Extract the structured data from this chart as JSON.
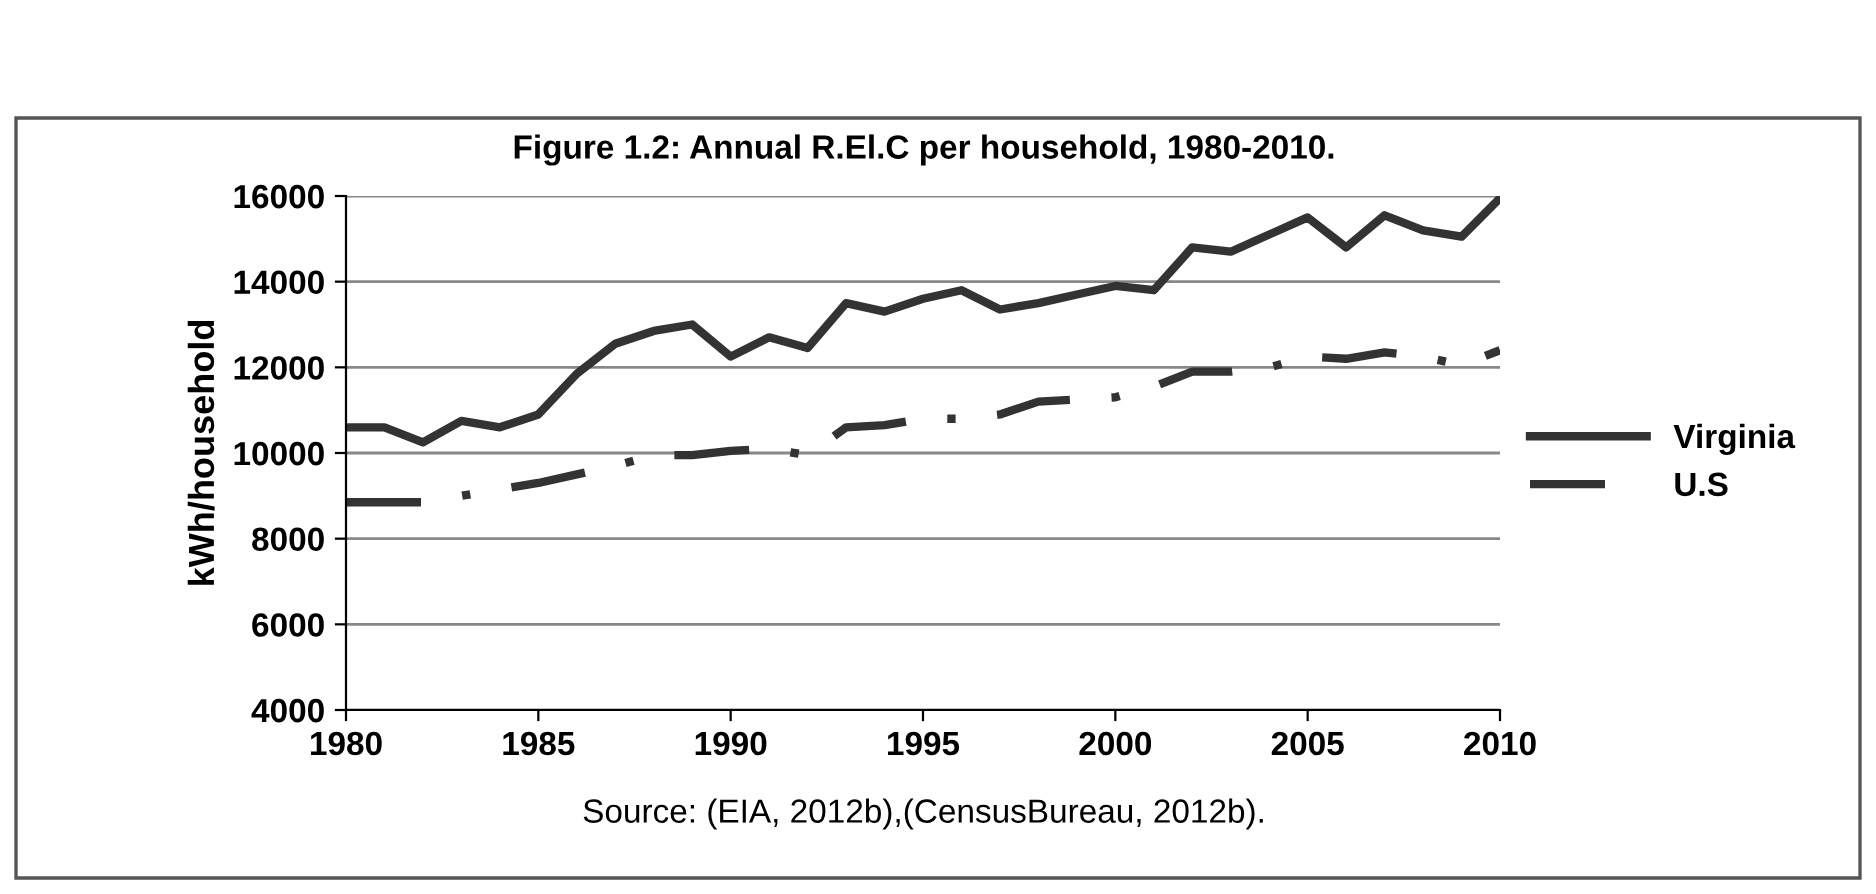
{
  "chart_data": {
    "type": "line",
    "title": "Figure 1.2: Annual R.El.C per household, 1980-2010.",
    "ylabel": "kWh/household",
    "annotations": [
      "Source: (EIA, 2012b),(CensusBureau, 2012b)."
    ],
    "x": [
      1980,
      1981,
      1982,
      1983,
      1984,
      1985,
      1986,
      1987,
      1988,
      1989,
      1990,
      1991,
      1992,
      1993,
      1994,
      1995,
      1996,
      1997,
      1998,
      1999,
      2000,
      2001,
      2002,
      2003,
      2004,
      2005,
      2006,
      2007,
      2008,
      2009,
      2010
    ],
    "series": [
      {
        "name": "Virginia",
        "color": "#333333",
        "line_style": "solid",
        "values": [
          10600,
          10600,
          10250,
          10750,
          10600,
          10900,
          11850,
          12550,
          12850,
          13000,
          12250,
          12700,
          12450,
          13500,
          13300,
          13600,
          13800,
          13350,
          13500,
          13700,
          13900,
          13800,
          14800,
          14700,
          15100,
          15500,
          14800,
          15550,
          15200,
          15050,
          15950
        ]
      },
      {
        "name": "U.S",
        "color": "#333333",
        "line_style": "dashdot",
        "values": [
          8850,
          8850,
          8850,
          9000,
          9150,
          9300,
          9500,
          9700,
          9950,
          9950,
          10050,
          10100,
          9950,
          10600,
          10650,
          10800,
          10800,
          10900,
          11200,
          11250,
          11300,
          11550,
          11900,
          11900,
          12000,
          12250,
          12200,
          12350,
          12250,
          12050,
          12400
        ]
      }
    ],
    "xlim": [
      1980,
      2010
    ],
    "xticks": [
      1980,
      1985,
      1990,
      1995,
      2000,
      2005,
      2010
    ],
    "ylim": [
      4000,
      16000
    ],
    "yticks": [
      4000,
      6000,
      8000,
      10000,
      12000,
      14000,
      16000
    ],
    "grid": "y",
    "legend": "right"
  }
}
